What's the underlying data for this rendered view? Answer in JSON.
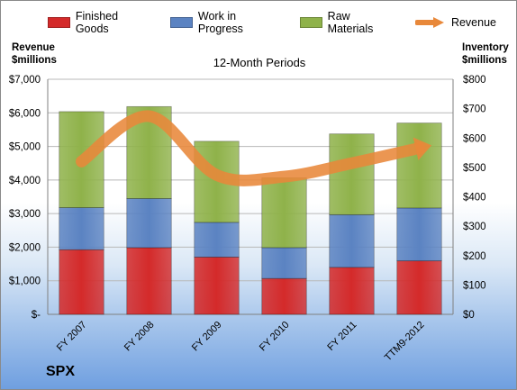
{
  "chart_data": {
    "type": "bar",
    "subtitle": "12-Month Periods",
    "company": "SPX",
    "left_axis": {
      "label_line1": "Revenue",
      "label_line2": "$millions",
      "range": [
        0,
        7000
      ],
      "ticks": [
        "$-",
        "$1,000",
        "$2,000",
        "$3,000",
        "$4,000",
        "$5,000",
        "$6,000",
        "$7,000"
      ]
    },
    "right_axis": {
      "label_line1": "Inventory",
      "label_line2": "$millions",
      "range": [
        0,
        800
      ],
      "ticks": [
        "$0",
        "$100",
        "$200",
        "$300",
        "$400",
        "$500",
        "$600",
        "$700",
        "$800"
      ]
    },
    "categories": [
      "FY 2007",
      "FY 2008",
      "FY 2009",
      "FY 2010",
      "FY 2011",
      "TTM9-2012"
    ],
    "series": [
      {
        "name": "Finished Goods",
        "kind": "stacked-bar",
        "axis": "right",
        "color": "#d42a2a",
        "values": [
          220,
          227,
          195,
          122,
          160,
          182
        ]
      },
      {
        "name": "Work in Progress",
        "kind": "stacked-bar",
        "axis": "right",
        "color": "#5b83c2",
        "values": [
          143,
          167,
          118,
          105,
          179,
          180
        ]
      },
      {
        "name": "Raw Materials",
        "kind": "stacked-bar",
        "axis": "right",
        "color": "#8fb24a",
        "values": [
          327,
          313,
          276,
          238,
          275,
          289
        ]
      },
      {
        "name": "Revenue",
        "kind": "line",
        "axis": "left",
        "color": "#e8883a",
        "values": [
          4550,
          5900,
          4150,
          4100,
          4500,
          4950
        ]
      }
    ],
    "grid": true,
    "legend_position": "top"
  }
}
